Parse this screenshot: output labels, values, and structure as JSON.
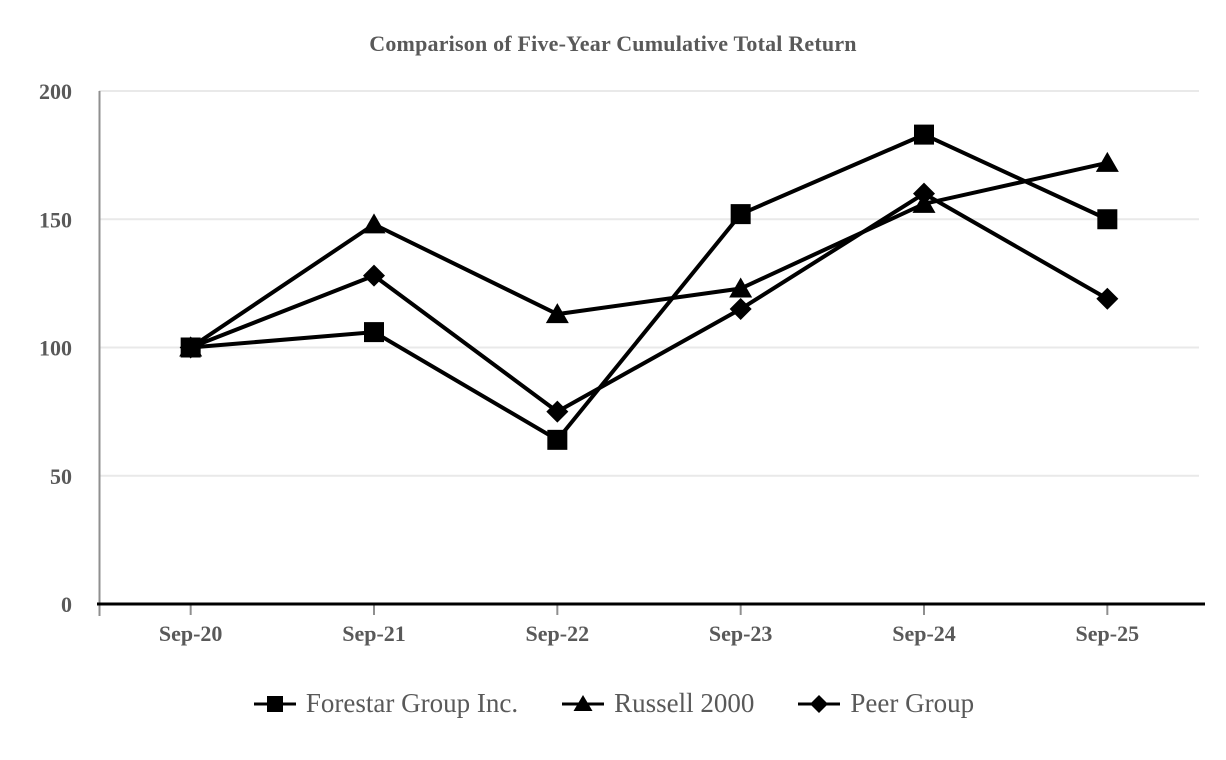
{
  "title": "Comparison of Five-Year Cumulative Total Return",
  "chart_data": {
    "type": "line",
    "title": "Comparison of Five-Year Cumulative Total Return",
    "categories": [
      "Sep-20",
      "Sep-21",
      "Sep-22",
      "Sep-23",
      "Sep-24",
      "Sep-25"
    ],
    "series": [
      {
        "name": "Forestar Group Inc.",
        "marker": "square",
        "values": [
          100,
          106,
          64,
          152,
          183,
          150
        ]
      },
      {
        "name": "Russell 2000",
        "marker": "triangle",
        "values": [
          100,
          148,
          113,
          123,
          156,
          172
        ]
      },
      {
        "name": "Peer Group",
        "marker": "diamond",
        "values": [
          100,
          128,
          75,
          115,
          160,
          119
        ]
      }
    ],
    "xlabel": "",
    "ylabel": "",
    "y_ticks": [
      0,
      50,
      100,
      150,
      200
    ],
    "ylim": [
      0,
      200
    ],
    "grid": true,
    "legend_position": "bottom",
    "colors": {
      "series": "#000000",
      "grid": "#e9e9e9",
      "x_axis": "#000000",
      "y_axis": "#8f8f8f",
      "tick": "#8f8f8f",
      "text": "#595959"
    }
  }
}
